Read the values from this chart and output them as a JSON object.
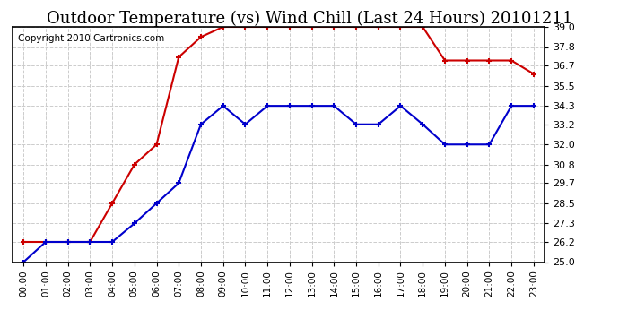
{
  "title": "Outdoor Temperature (vs) Wind Chill (Last 24 Hours) 20101211",
  "copyright": "Copyright 2010 Cartronics.com",
  "x_labels": [
    "00:00",
    "01:00",
    "02:00",
    "03:00",
    "04:00",
    "05:00",
    "06:00",
    "07:00",
    "08:00",
    "09:00",
    "10:00",
    "11:00",
    "12:00",
    "13:00",
    "14:00",
    "15:00",
    "16:00",
    "17:00",
    "18:00",
    "19:00",
    "20:00",
    "21:00",
    "22:00",
    "23:00"
  ],
  "red_data": [
    26.2,
    26.2,
    26.2,
    26.2,
    28.5,
    30.8,
    32.0,
    37.2,
    38.4,
    39.0,
    39.0,
    39.0,
    39.0,
    39.0,
    39.0,
    39.0,
    39.0,
    39.0,
    39.0,
    37.0,
    37.0,
    37.0,
    37.0,
    36.2
  ],
  "blue_data": [
    25.0,
    26.2,
    26.2,
    26.2,
    26.2,
    27.3,
    28.5,
    29.7,
    33.2,
    34.3,
    33.2,
    34.3,
    34.3,
    34.3,
    34.3,
    33.2,
    33.2,
    34.3,
    33.2,
    32.0,
    32.0,
    32.0,
    34.3,
    34.3
  ],
  "red_color": "#cc0000",
  "blue_color": "#0000cc",
  "ylim_min": 25.0,
  "ylim_max": 39.0,
  "yticks": [
    25.0,
    26.2,
    27.3,
    28.5,
    29.7,
    30.8,
    32.0,
    33.2,
    34.3,
    35.5,
    36.7,
    37.8,
    39.0
  ],
  "bg_color": "#ffffff",
  "grid_color": "#cccccc",
  "title_fontsize": 13,
  "copyright_fontsize": 7.5
}
